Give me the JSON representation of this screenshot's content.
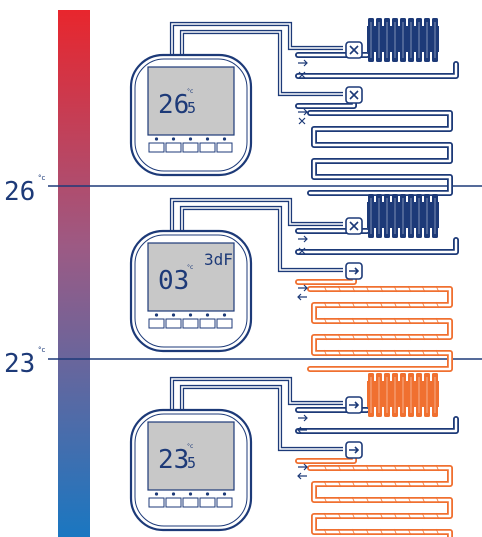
{
  "colors": {
    "navy": "#1d3a78",
    "orange": "#f07030",
    "hot": "#e8262d",
    "cold": "#1a77c1",
    "lcd_bg": "#c8c8c8"
  },
  "scale": {
    "upper_threshold": "26",
    "lower_threshold": "23",
    "unit": "°c"
  },
  "panels": [
    {
      "id": "hot",
      "display_value": "26",
      "display_decimal": "5",
      "display_unit": "°c",
      "extra_label": "",
      "radiator_state": "closed",
      "floor_state": "closed"
    },
    {
      "id": "mid",
      "display_value": "03",
      "display_decimal": "",
      "display_unit": "°c",
      "extra_label": "3dF",
      "radiator_state": "closed",
      "floor_state": "open"
    },
    {
      "id": "cold",
      "display_value": "23",
      "display_decimal": "5",
      "display_unit": "°c",
      "extra_label": "",
      "radiator_state": "open",
      "floor_state": "open"
    }
  ],
  "icons": {
    "closed_valve": "closed-valve-x-icon",
    "open_valve": "open-valve-arrow-icon",
    "supply_arrow": "supply-arrow-icon",
    "return_cross": "return-cross-icon"
  }
}
